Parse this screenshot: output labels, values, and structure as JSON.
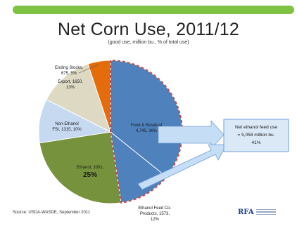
{
  "slide": {
    "title": "Net Corn Use, 2011/12",
    "subtitle": "(good use, million bu., % of total use)",
    "source": "Source: USDA-WASDE, September 2011",
    "logo_text": "RFA",
    "callout": {
      "line1": "Net ethanol feed use",
      "line2": "= 5,058 million bu.",
      "line3": "41%"
    }
  },
  "chart_data": {
    "type": "pie",
    "title": "Net Corn Use, 2011/12",
    "subtitle": "(good use, million bu., % of total use)",
    "slices": [
      {
        "name": "Food & Residual",
        "value": 4745,
        "pct": 36,
        "label1": "Food & Residual",
        "label2": "4,745, 36%",
        "color": "#4f81bd",
        "outline": true
      },
      {
        "name": "Ethanol Feed Co-Products",
        "value": 1573,
        "pct": 12,
        "label1": "Ethanol Feed Co-",
        "label2": "Products, 1573,",
        "label3": "12%",
        "color": "#4f81bd",
        "outline": true
      },
      {
        "name": "Ethanol",
        "value": 3301,
        "pct": 25,
        "label1": "Ethanol, 3301,",
        "label2": "25%",
        "color": "#76923c"
      },
      {
        "name": "Non-Ethanol",
        "value": 1315,
        "pct": 10,
        "label1": "Non-Ethanol",
        "label2": "FSI, 1315, 10%",
        "color": "#c6d9f1"
      },
      {
        "name": "Export",
        "value": 1650,
        "pct": 13,
        "label1": "Export, 1650,",
        "label2": "13%",
        "color": "#ddd9c3"
      },
      {
        "name": "Ending Stocks",
        "value": 675,
        "pct": 5,
        "label1": "Ending Stocks,",
        "label2": "675, 5%",
        "color": "#e46c0a"
      }
    ],
    "colors": {
      "outline": "#c0504d"
    }
  }
}
